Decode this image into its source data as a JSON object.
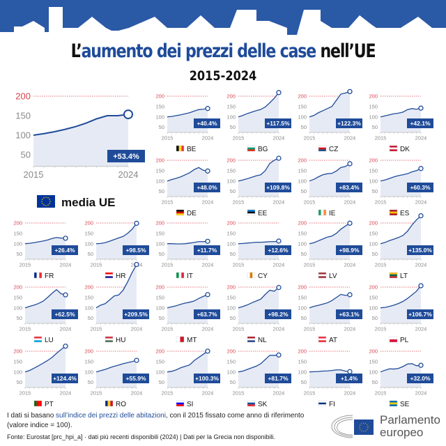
{
  "title": {
    "part1": "L’",
    "highlight": "aumento dei prezzi delle case",
    "part2": " nell’UE"
  },
  "subtitle": "2015-2024",
  "colors": {
    "banner": "#2a59a6",
    "line": "#1f4b99",
    "fill": "#e6eaf4",
    "badge": "#1f4b99",
    "ref_line": "#d9434e",
    "tick": "#888888"
  },
  "chart_data": {
    "type": "line",
    "x": [
      2015,
      2016,
      2017,
      2018,
      2019,
      2020,
      2021,
      2022,
      2023,
      2024
    ],
    "x_tick_labels": [
      "2015",
      "2024"
    ],
    "y_ticks": [
      "200",
      "150",
      "100",
      "50"
    ],
    "reference_line": 200,
    "eu": {
      "label": "media UE",
      "change": "+53.4%",
      "values": [
        100,
        104,
        109,
        115,
        122,
        131,
        142,
        150,
        150,
        153.4
      ],
      "flag": [
        "#003399"
      ]
    },
    "countries": [
      {
        "code": "BE",
        "change": "+40.4%",
        "flag": [
          "#000000",
          "#fdda24",
          "#ef3340"
        ],
        "values": [
          100,
          102,
          106,
          110,
          115,
          120,
          128,
          135,
          137,
          140.4
        ]
      },
      {
        "code": "BG",
        "change": "+117.5%",
        "flag": [
          "#ffffff",
          "#00966e",
          "#d62612"
        ],
        "h": 1,
        "values": [
          100,
          107,
          116,
          123,
          130,
          136,
          148,
          168,
          190,
          217.5
        ]
      },
      {
        "code": "CZ",
        "change": "+122.3%",
        "flag": [
          "#ffffff",
          "#d7141a",
          "#11457e"
        ],
        "h": 1,
        "values": [
          100,
          107,
          120,
          130,
          140,
          150,
          180,
          210,
          215,
          222.3
        ]
      },
      {
        "code": "DK",
        "change": "+42.1%",
        "flag": [
          "#c8102e",
          "#ffffff",
          "#c8102e"
        ],
        "h": 1,
        "values": [
          100,
          105,
          110,
          115,
          118,
          123,
          135,
          140,
          137,
          142.1
        ]
      },
      {
        "code": "DE",
        "change": "+48.0%",
        "flag": [
          "#000000",
          "#dd0000",
          "#ffce00"
        ],
        "h": 1,
        "values": [
          100,
          107,
          113,
          120,
          130,
          140,
          155,
          165,
          152,
          148
        ]
      },
      {
        "code": "EE",
        "change": "+109.8%",
        "flag": [
          "#0072ce",
          "#000000",
          "#ffffff"
        ],
        "h": 1,
        "values": [
          100,
          105,
          111,
          118,
          125,
          130,
          150,
          185,
          200,
          209.8
        ]
      },
      {
        "code": "IE",
        "change": "+83.4%",
        "flag": [
          "#169b62",
          "#ffffff",
          "#ff883e"
        ],
        "values": [
          100,
          108,
          120,
          130,
          135,
          137,
          148,
          165,
          170,
          183.4
        ]
      },
      {
        "code": "ES",
        "change": "+60.3%",
        "flag": [
          "#aa151b",
          "#f1bf00",
          "#aa151b"
        ],
        "h": 1,
        "values": [
          100,
          105,
          112,
          120,
          126,
          130,
          135,
          144,
          150,
          160.3
        ]
      },
      {
        "code": "FR",
        "change": "+26.4%",
        "flag": [
          "#002395",
          "#ffffff",
          "#ed2939"
        ],
        "values": [
          100,
          102,
          105,
          109,
          113,
          118,
          125,
          130,
          127,
          126.4
        ]
      },
      {
        "code": "HR",
        "change": "+98.5%",
        "flag": [
          "#ff0000",
          "#ffffff",
          "#171796"
        ],
        "h": 1,
        "values": [
          100,
          101,
          105,
          112,
          120,
          128,
          135,
          150,
          170,
          198.5
        ]
      },
      {
        "code": "IT",
        "change": "+11.7%",
        "flag": [
          "#009246",
          "#ffffff",
          "#ce2b37"
        ],
        "values": [
          100,
          100,
          99,
          99,
          100,
          103,
          106,
          110,
          110,
          111.7
        ]
      },
      {
        "code": "CY",
        "change": "+12.6%",
        "flag": [
          "#ffffff",
          "#d57800",
          "#ffffff"
        ],
        "values": [
          100,
          101,
          103,
          105,
          107,
          107,
          108,
          110,
          110,
          112.6
        ]
      },
      {
        "code": "LV",
        "change": "+98.9%",
        "flag": [
          "#9e3039",
          "#ffffff",
          "#9e3039"
        ],
        "h": 1,
        "values": [
          100,
          105,
          114,
          123,
          132,
          137,
          150,
          170,
          185,
          198.9
        ]
      },
      {
        "code": "LT",
        "change": "+135.0%",
        "flag": [
          "#fdb913",
          "#006a44",
          "#c1272d"
        ],
        "h": 1,
        "values": [
          100,
          106,
          115,
          122,
          130,
          140,
          160,
          190,
          215,
          235
        ]
      },
      {
        "code": "LU",
        "change": "+62.5%",
        "flag": [
          "#ed2939",
          "#ffffff",
          "#00a1de"
        ],
        "h": 1,
        "values": [
          100,
          107,
          113,
          121,
          132,
          150,
          170,
          188,
          168,
          162.5
        ]
      },
      {
        "code": "HU",
        "change": "+209.5%",
        "flag": [
          "#ce2939",
          "#ffffff",
          "#477050"
        ],
        "h": 1,
        "values": [
          100,
          113,
          120,
          138,
          157,
          162,
          185,
          225,
          270,
          309.5
        ]
      },
      {
        "code": "MT",
        "change": "+63.7%",
        "flag": [
          "#ffffff",
          "#cf142b"
        ],
        "values": [
          100,
          105,
          110,
          117,
          123,
          127,
          133,
          145,
          155,
          163.7
        ]
      },
      {
        "code": "NL",
        "change": "+98.2%",
        "flag": [
          "#ae1c28",
          "#ffffff",
          "#21468b"
        ],
        "h": 1,
        "values": [
          100,
          106,
          114,
          124,
          133,
          142,
          165,
          185,
          180,
          198.2
        ]
      },
      {
        "code": "AT",
        "change": "+63.1%",
        "flag": [
          "#ed2939",
          "#ffffff",
          "#ed2939"
        ],
        "h": 1,
        "values": [
          100,
          107,
          112,
          118,
          124,
          135,
          150,
          165,
          160,
          163.1
        ]
      },
      {
        "code": "PL",
        "change": "+106.7%",
        "flag": [
          "#ffffff",
          "#dc143c"
        ],
        "h": 1,
        "values": [
          100,
          102,
          107,
          113,
          121,
          131,
          145,
          162,
          180,
          206.7
        ]
      },
      {
        "code": "PT",
        "change": "+124.4%",
        "flag": [
          "#006600",
          "#ff0000",
          "#ff0000"
        ],
        "values": [
          100,
          107,
          118,
          130,
          142,
          155,
          170,
          190,
          208,
          224.4
        ]
      },
      {
        "code": "RO",
        "change": "+55.9%",
        "flag": [
          "#002b7f",
          "#fcd116",
          "#ce1126"
        ],
        "values": [
          100,
          106,
          112,
          120,
          127,
          133,
          140,
          145,
          150,
          155.9
        ]
      },
      {
        "code": "SI",
        "change": "+100.3%",
        "flag": [
          "#ffffff",
          "#0000ff",
          "#ff0000"
        ],
        "h": 1,
        "values": [
          100,
          103,
          110,
          120,
          127,
          134,
          155,
          170,
          185,
          200.3
        ]
      },
      {
        "code": "SK",
        "change": "+81.7%",
        "flag": [
          "#ffffff",
          "#0b4ea2",
          "#ee1c25"
        ],
        "h": 1,
        "values": [
          100,
          104,
          112,
          120,
          128,
          140,
          160,
          180,
          180,
          181.7
        ]
      },
      {
        "code": "FI",
        "change": "+1.4%",
        "flag": [
          "#ffffff",
          "#003580",
          "#ffffff"
        ],
        "h": 1,
        "values": [
          100,
          101,
          102,
          104,
          105,
          107,
          110,
          110,
          104,
          101.4
        ]
      },
      {
        "code": "SE",
        "change": "+32.0%",
        "flag": [
          "#006aa7",
          "#fecc00",
          "#006aa7"
        ],
        "h": 1,
        "values": [
          100,
          108,
          115,
          114,
          117,
          126,
          138,
          140,
          130,
          132
        ]
      }
    ]
  },
  "footer": {
    "note_pre": "I dati si basano ",
    "note_link": "sull’indice dei prezzi delle abitazioni",
    "note_post": ", con il 2015 fissato come anno di riferimento (valore indice = 100).",
    "source": "Fonte: Eurostat [prc_hpi_a] · dati più recenti disponibili (2024) | Dati per la Grecia non disponibili.",
    "logo": "Parlamento europeo"
  }
}
